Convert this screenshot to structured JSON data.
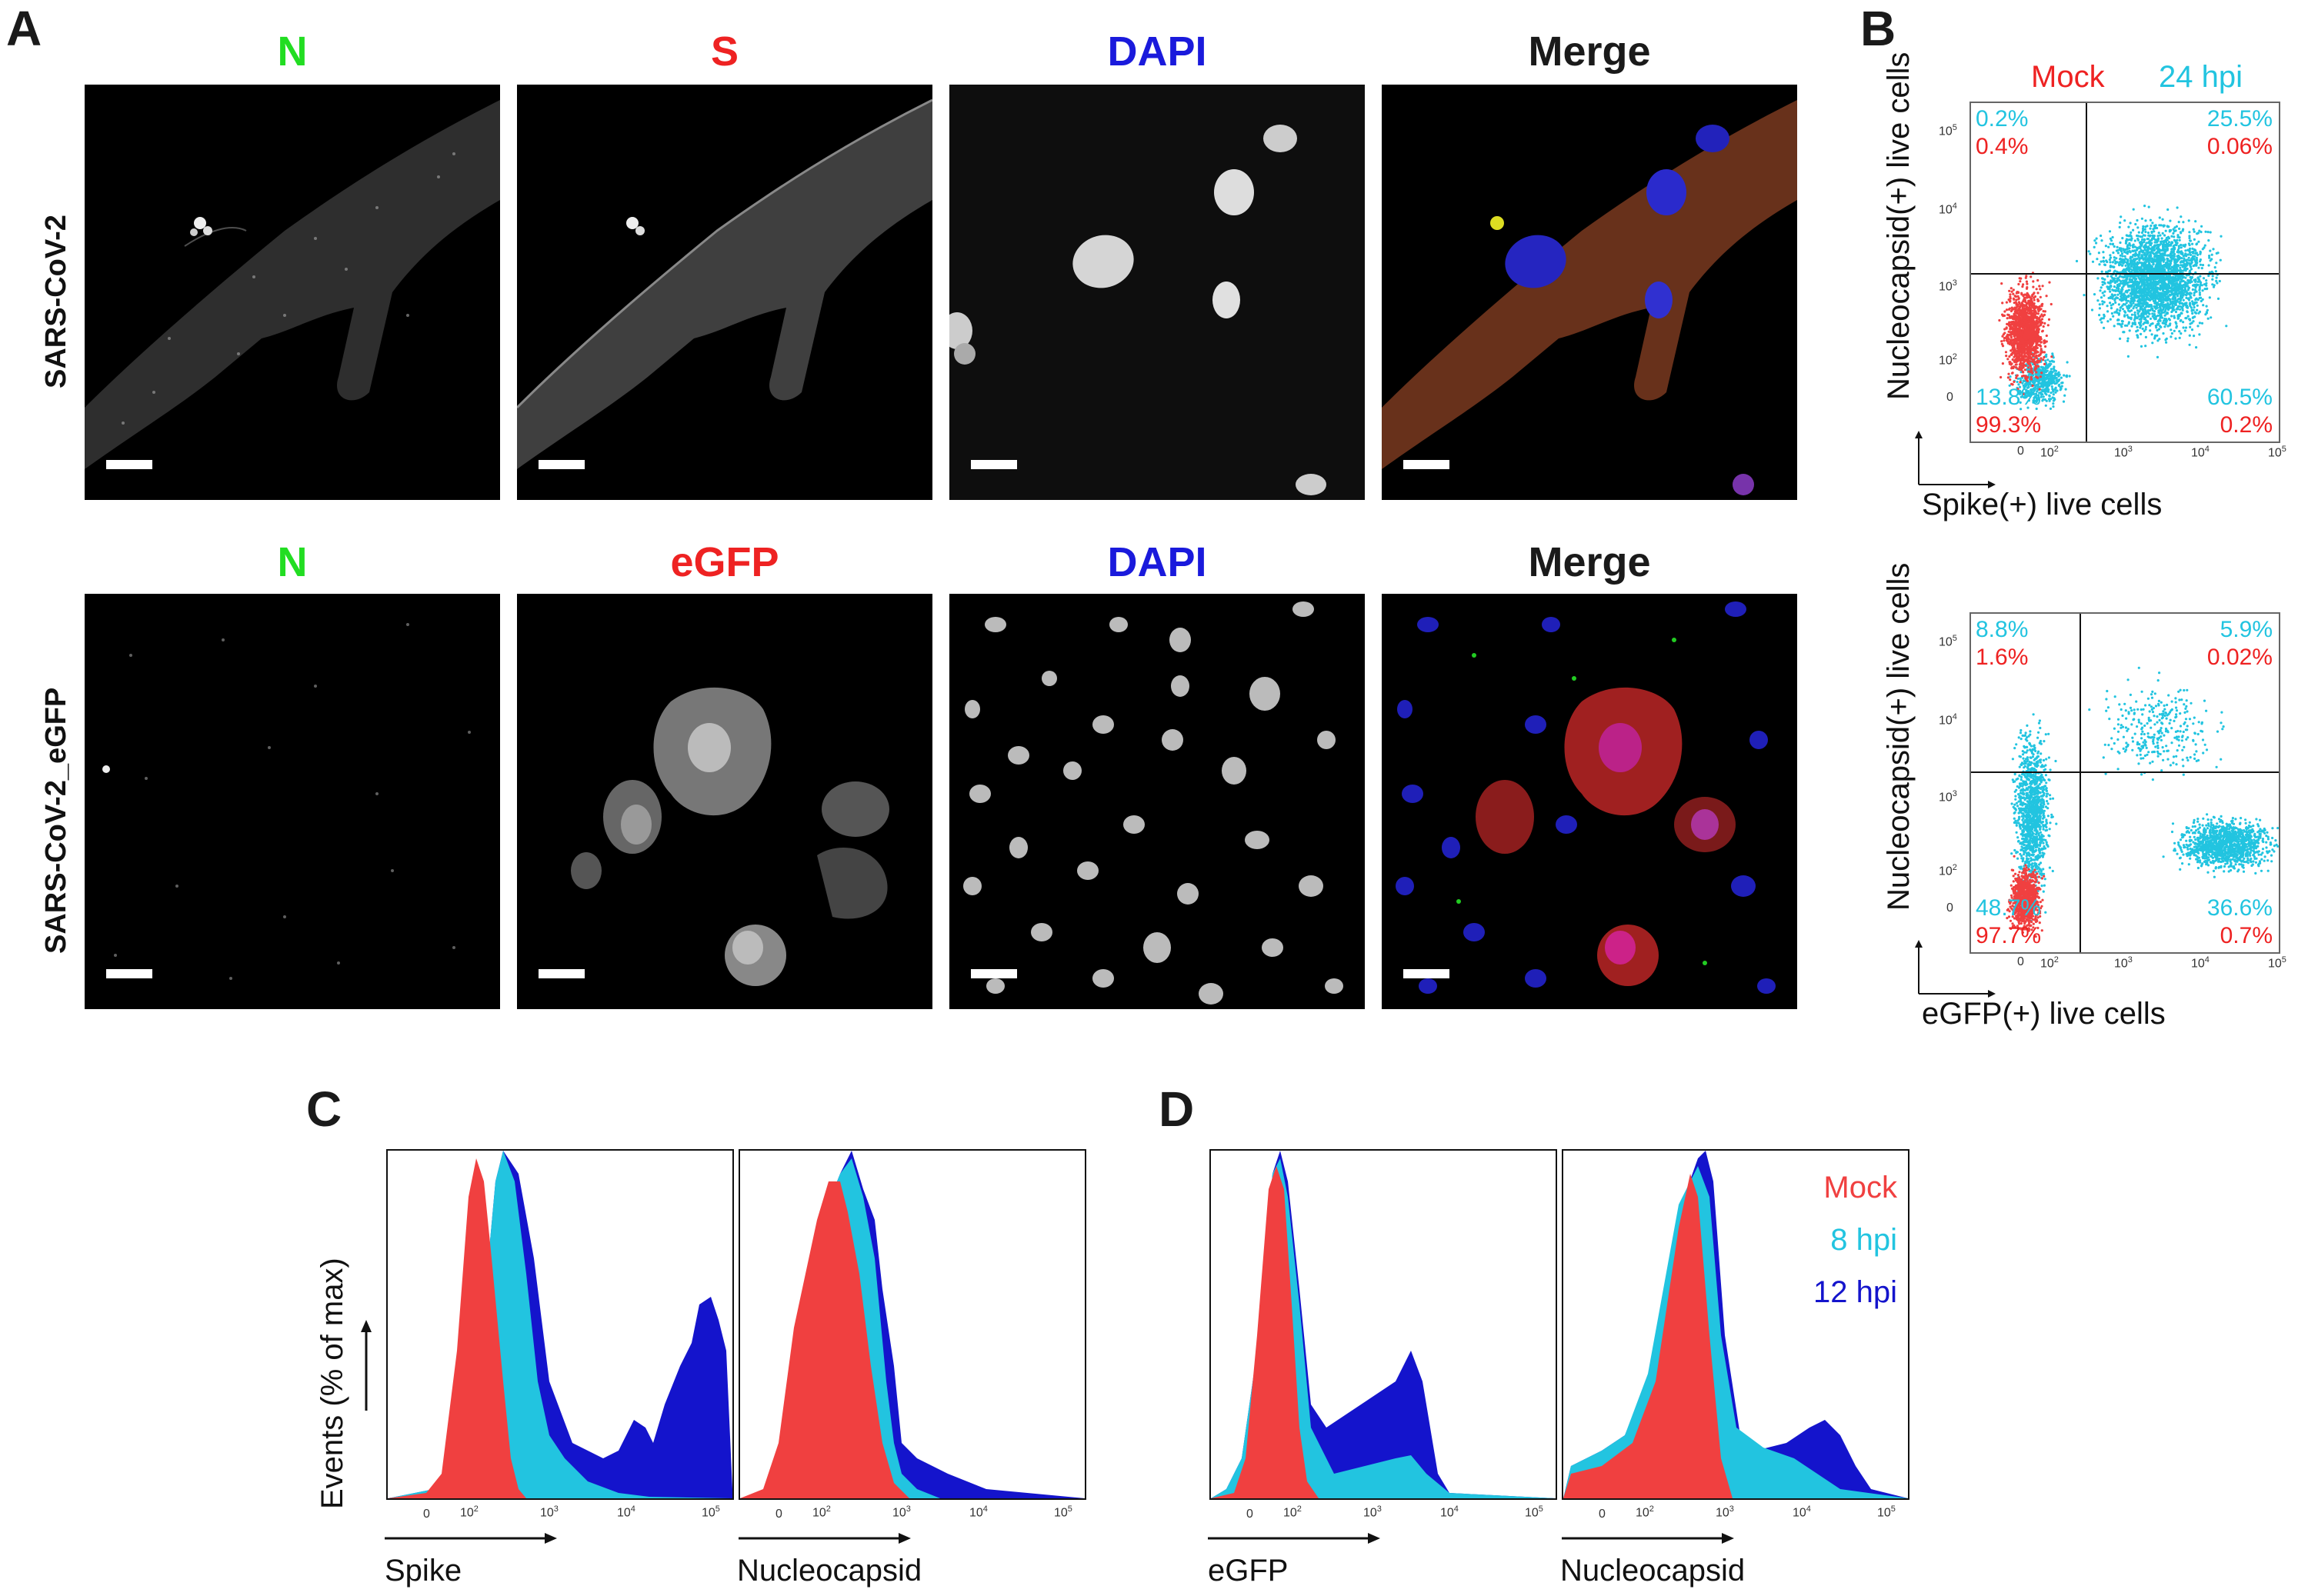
{
  "panel_letters": {
    "a": "A",
    "b": "B",
    "c": "C",
    "d": "D"
  },
  "colors": {
    "green": "#22dd22",
    "red": "#ee2222",
    "blue": "#1a1adc",
    "black": "#1a1a1a",
    "cyan": "#22c4e0",
    "mock_red": "#f04040",
    "dark_blue": "#1414cc"
  },
  "panel_a": {
    "row1": {
      "label": "SARS-CoV-2",
      "channels": [
        "N",
        "S",
        "DAPI",
        "Merge"
      ]
    },
    "row2": {
      "label": "SARS-CoV-2_eGFP",
      "channels": [
        "N",
        "eGFP",
        "DAPI",
        "Merge"
      ]
    }
  },
  "panel_b": {
    "legend": {
      "mock": "Mock",
      "hpi": "24 hpi"
    },
    "plot1": {
      "ylabel": "Nucleocapsid(+) live cells",
      "xlabel": "Spike(+) live cells",
      "q_ul_cyan": "0.2%",
      "q_ul_red": "0.4%",
      "q_ur_cyan": "25.5%",
      "q_ur_red": "0.06%",
      "q_ll_cyan": "13.8%",
      "q_ll_red": "99.3%",
      "q_lr_cyan": "60.5%",
      "q_lr_red": "0.2%"
    },
    "plot2": {
      "ylabel": "Nucleocapsid(+) live cells",
      "xlabel": "eGFP(+) live cells",
      "q_ul_cyan": "8.8%",
      "q_ul_red": "1.6%",
      "q_ur_cyan": "5.9%",
      "q_ur_red": "0.02%",
      "q_ll_cyan": "48.7%",
      "q_ll_red": "97.7%",
      "q_lr_cyan": "36.6%",
      "q_lr_red": "0.7%"
    },
    "x_ticks": [
      "0",
      "10",
      "10",
      "10",
      "10"
    ],
    "x_tick_exp": [
      "",
      "2",
      "3",
      "4",
      "5"
    ],
    "y_ticks": [
      "0",
      "10",
      "10",
      "10",
      "10"
    ],
    "y_tick_exp": [
      "",
      "2",
      "3",
      "4",
      "5"
    ]
  },
  "panel_c": {
    "ylabel": "Events (% of max)",
    "hist1_xlabel": "Spike",
    "hist2_xlabel": "Nucleocapsid"
  },
  "panel_d": {
    "hist1_xlabel": "eGFP",
    "hist2_xlabel": "Nucleocapsid",
    "legend": [
      "Mock",
      "8 hpi",
      "12 hpi"
    ]
  },
  "hist_x_ticks": [
    "0",
    "10",
    "10",
    "10",
    "10"
  ],
  "hist_x_tick_exp": [
    "",
    "2",
    "3",
    "4",
    "5"
  ]
}
